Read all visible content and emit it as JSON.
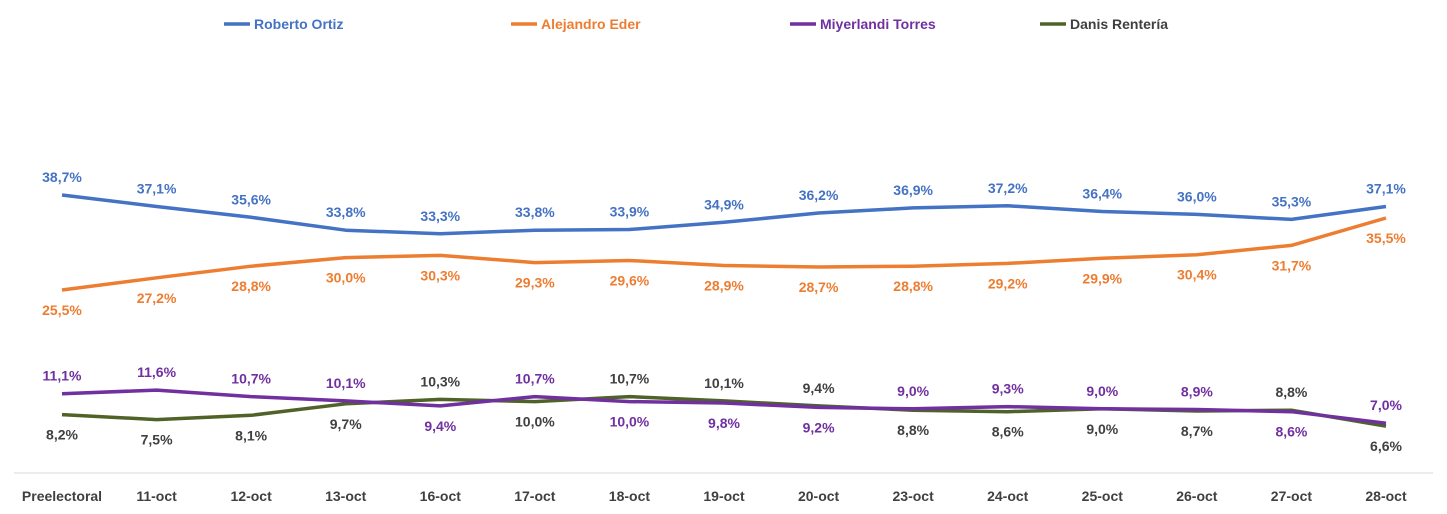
{
  "chart_data": {
    "type": "line",
    "title": "",
    "xlabel": "",
    "ylabel": "",
    "categories": [
      "Preelectoral",
      "11-oct",
      "12-oct",
      "13-oct",
      "16-oct",
      "17-oct",
      "18-oct",
      "19-oct",
      "20-oct",
      "23-oct",
      "24-oct",
      "25-oct",
      "26-oct",
      "27-oct",
      "28-oct"
    ],
    "ylim": [
      0,
      65
    ],
    "grid": false,
    "legend_position": "top",
    "series": [
      {
        "name": "Roberto Ortiz",
        "color": "#4472C4",
        "label_color": "#4472C4",
        "values": [
          38.7,
          37.1,
          35.6,
          33.8,
          33.3,
          33.8,
          33.9,
          34.9,
          36.2,
          36.9,
          37.2,
          36.4,
          36.0,
          35.3,
          37.1
        ],
        "labels": [
          "38,7%",
          "37,1%",
          "35,6%",
          "33,8%",
          "33,3%",
          "33,8%",
          "33,9%",
          "34,9%",
          "36,2%",
          "36,9%",
          "37,2%",
          "36,4%",
          "36,0%",
          "35,3%",
          "37,1%"
        ]
      },
      {
        "name": "Alejandro Eder",
        "color": "#ED7D31",
        "label_color": "#ED7D31",
        "values": [
          25.5,
          27.2,
          28.8,
          30.0,
          30.3,
          29.3,
          29.6,
          28.9,
          28.7,
          28.8,
          29.2,
          29.9,
          30.4,
          31.7,
          35.5
        ],
        "labels": [
          "25,5%",
          "27,2%",
          "28,8%",
          "30,0%",
          "30,3%",
          "29,3%",
          "29,6%",
          "28,9%",
          "28,7%",
          "28,8%",
          "29,2%",
          "29,9%",
          "30,4%",
          "31,7%",
          "35,5%"
        ]
      },
      {
        "name": "Miyerlandi Torres",
        "color": "#7030A0",
        "label_color": "#7030A0",
        "values": [
          11.1,
          11.6,
          10.7,
          10.1,
          9.4,
          10.7,
          10.0,
          9.8,
          9.2,
          9.0,
          9.3,
          9.0,
          8.9,
          8.6,
          7.0
        ],
        "labels": [
          "11,1%",
          "11,6%",
          "10,7%",
          "10,1%",
          "9,4%",
          "10,7%",
          "10,0%",
          "9,8%",
          "9,2%",
          "9,0%",
          "9,3%",
          "9,0%",
          "8,9%",
          "8,6%",
          "7,0%"
        ]
      },
      {
        "name": "Danis Rentería",
        "color": "#4F6228",
        "label_color": "#404040",
        "values": [
          8.2,
          7.5,
          8.1,
          9.7,
          10.3,
          10.0,
          10.7,
          10.1,
          9.4,
          8.8,
          8.6,
          9.0,
          8.7,
          8.8,
          6.6
        ],
        "labels": [
          "8,2%",
          "7,5%",
          "8,1%",
          "9,7%",
          "10,3%",
          "10,0%",
          "10,7%",
          "10,1%",
          "9,4%",
          "8,8%",
          "8,6%",
          "9,0%",
          "8,7%",
          "8,8%",
          "6,6%"
        ]
      }
    ]
  }
}
